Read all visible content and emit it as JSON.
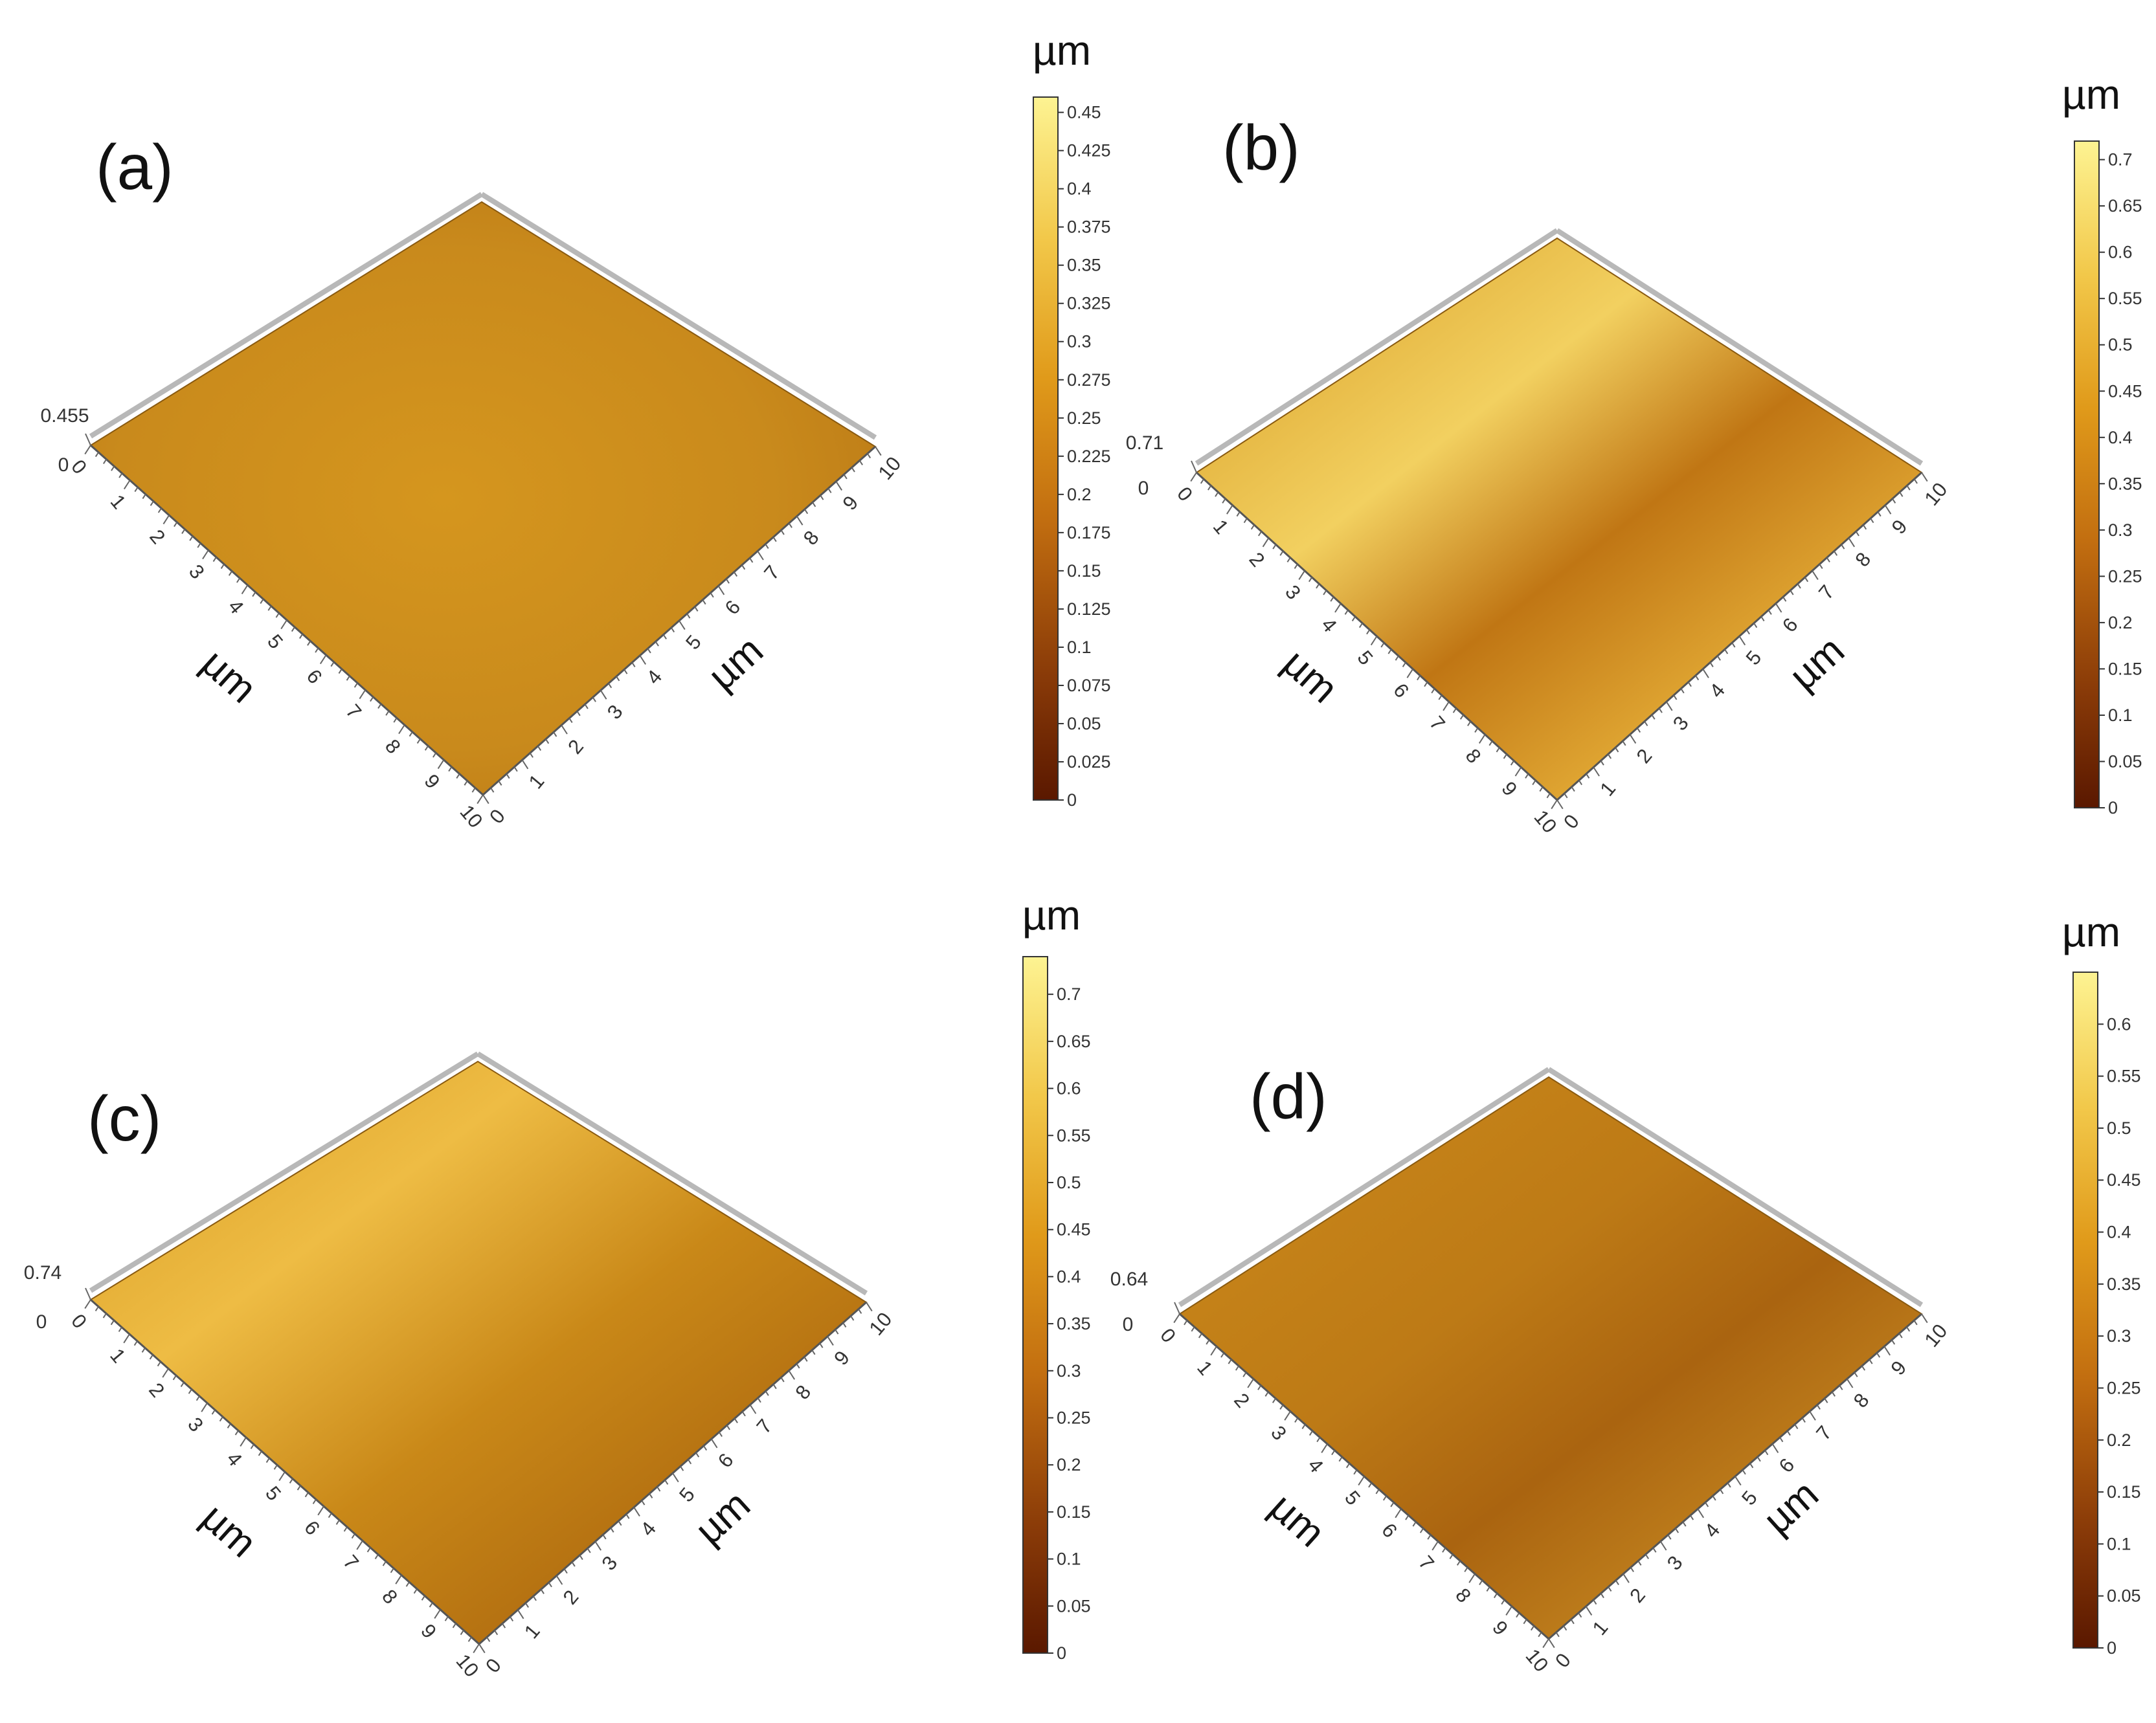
{
  "chart_data": [
    {
      "type": "heatmap",
      "panel_label": "(a)",
      "x_label": "µm",
      "y_label": "µm",
      "x_ticks": [
        "0",
        "1",
        "2",
        "3",
        "4",
        "5",
        "6",
        "7",
        "8",
        "9",
        "10"
      ],
      "y_ticks": [
        "0",
        "1",
        "2",
        "3",
        "4",
        "5",
        "6",
        "7",
        "8",
        "9",
        "10"
      ],
      "z_range": [
        0,
        0.455
      ],
      "z_labels": [
        "0.455",
        "0"
      ],
      "colorbar": {
        "unit": "µm",
        "range": [
          0,
          0.46
        ],
        "ticks": [
          "0",
          "0.025",
          "0.05",
          "0.075",
          "0.1",
          "0.125",
          "0.15",
          "0.175",
          "0.2",
          "0.225",
          "0.25",
          "0.275",
          "0.3",
          "0.325",
          "0.35",
          "0.375",
          "0.4",
          "0.425",
          "0.45"
        ]
      }
    },
    {
      "type": "heatmap",
      "panel_label": "(b)",
      "x_label": "µm",
      "y_label": "µm",
      "x_ticks": [
        "0",
        "1",
        "2",
        "3",
        "4",
        "5",
        "6",
        "7",
        "8",
        "9",
        "10"
      ],
      "y_ticks": [
        "0",
        "1",
        "2",
        "3",
        "4",
        "5",
        "6",
        "7",
        "8",
        "9",
        "10"
      ],
      "z_range": [
        0,
        0.71
      ],
      "z_labels": [
        "0.71",
        "0"
      ],
      "colorbar": {
        "unit": "µm",
        "range": [
          0,
          0.72
        ],
        "ticks": [
          "0",
          "0.05",
          "0.1",
          "0.15",
          "0.2",
          "0.25",
          "0.3",
          "0.35",
          "0.4",
          "0.45",
          "0.5",
          "0.55",
          "0.6",
          "0.65",
          "0.7"
        ]
      }
    },
    {
      "type": "heatmap",
      "panel_label": "(c)",
      "x_label": "µm",
      "y_label": "µm",
      "x_ticks": [
        "0",
        "1",
        "2",
        "3",
        "4",
        "5",
        "6",
        "7",
        "8",
        "9",
        "10"
      ],
      "y_ticks": [
        "0",
        "1",
        "2",
        "3",
        "4",
        "5",
        "6",
        "7",
        "8",
        "9",
        "10"
      ],
      "z_range": [
        0,
        0.74
      ],
      "z_labels": [
        "0.74",
        "0"
      ],
      "colorbar": {
        "unit": "µm",
        "range": [
          0,
          0.74
        ],
        "ticks": [
          "0",
          "0.05",
          "0.1",
          "0.15",
          "0.2",
          "0.25",
          "0.3",
          "0.35",
          "0.4",
          "0.45",
          "0.5",
          "0.55",
          "0.6",
          "0.65",
          "0.7"
        ]
      }
    },
    {
      "type": "heatmap",
      "panel_label": "(d)",
      "x_label": "µm",
      "y_label": "µm",
      "x_ticks": [
        "0",
        "1",
        "2",
        "3",
        "4",
        "5",
        "6",
        "7",
        "8",
        "9",
        "10"
      ],
      "y_ticks": [
        "0",
        "1",
        "2",
        "3",
        "4",
        "5",
        "6",
        "7",
        "8",
        "9",
        "10"
      ],
      "z_range": [
        0,
        0.64
      ],
      "z_labels": [
        "0.64",
        "0"
      ],
      "colorbar": {
        "unit": "µm",
        "range": [
          0,
          0.65
        ],
        "ticks": [
          "0",
          "0.05",
          "0.1",
          "0.15",
          "0.2",
          "0.25",
          "0.3",
          "0.35",
          "0.4",
          "0.45",
          "0.5",
          "0.55",
          "0.6"
        ]
      }
    }
  ]
}
